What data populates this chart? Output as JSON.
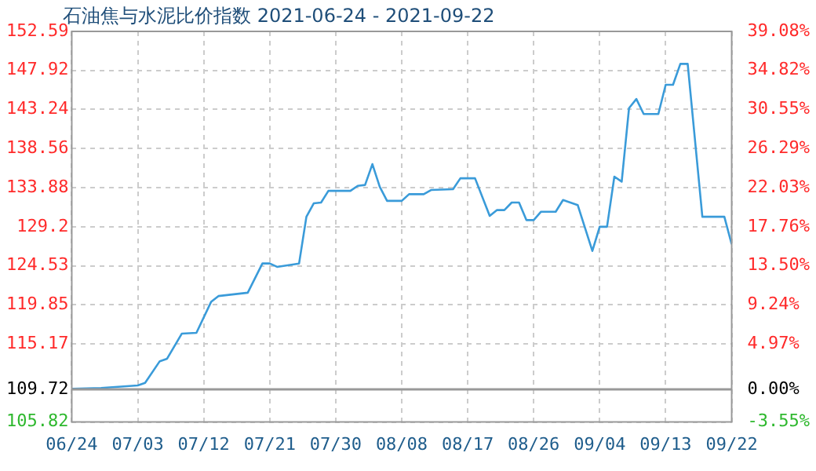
{
  "chart_data": {
    "type": "line",
    "title": "石油焦与水泥比价指数 2021-06-24 - 2021-09-22",
    "x": [
      "--06-24",
      "--06-28",
      "--07-03",
      "--07-04",
      "--07-06",
      "--07-07",
      "--07-09",
      "--07-11",
      "--07-13",
      "--07-14",
      "--07-18",
      "--07-20",
      "--07-21",
      "--07-22",
      "--07-25",
      "--07-26",
      "--07-27",
      "--07-28",
      "--07-29",
      "--08-01",
      "--08-02",
      "--08-03",
      "--08-04",
      "--08-05",
      "--08-06",
      "--08-08",
      "--08-09",
      "--08-11",
      "--08-12",
      "--08-15",
      "--08-16",
      "--08-18",
      "--08-20",
      "--08-21",
      "--08-22",
      "--08-23",
      "--08-24",
      "--08-25",
      "--08-26",
      "--08-27",
      "--08-29",
      "--08-30",
      "--09-01",
      "--09-03",
      "--09-04",
      "--09-05",
      "--09-06",
      "--09-07",
      "--09-08",
      "--09-09",
      "--09-10",
      "--09-12",
      "--09-13",
      "--09-14",
      "--09-15",
      "--09-16",
      "--09-18",
      "--09-21",
      "--09-22"
    ],
    "series": [
      {
        "color": "#3a9bd9",
        "values": [
          109.8,
          109.9,
          110.2,
          110.5,
          113.1,
          113.4,
          116.4,
          116.5,
          120.2,
          120.9,
          121.3,
          124.8,
          124.8,
          124.4,
          124.8,
          130.4,
          132.0,
          132.1,
          133.5,
          133.5,
          134.1,
          134.2,
          136.7,
          134.0,
          132.3,
          132.3,
          133.1,
          133.1,
          133.6,
          133.7,
          135.0,
          135.0,
          130.5,
          131.2,
          131.2,
          132.1,
          132.1,
          130.0,
          130.0,
          131.0,
          131.0,
          132.4,
          131.8,
          126.3,
          129.2,
          129.2,
          135.2,
          134.6,
          143.4,
          144.5,
          142.7,
          142.7,
          146.2,
          146.2,
          148.7,
          148.7,
          130.4,
          130.4,
          127.1
        ]
      }
    ],
    "xlim": [
      "--06-24",
      "--09-22"
    ],
    "xticks": [
      {
        "value": "--06-24",
        "label": "06/24"
      },
      {
        "value": "--07-03",
        "label": "07/03"
      },
      {
        "value": "--07-12",
        "label": "07/12"
      },
      {
        "value": "--07-21",
        "label": "07/21"
      },
      {
        "value": "--07-30",
        "label": "07/30"
      },
      {
        "value": "--08-08",
        "label": "08/08"
      },
      {
        "value": "--08-17",
        "label": "08/17"
      },
      {
        "value": "--08-26",
        "label": "08/26"
      },
      {
        "value": "--09-04",
        "label": "09/04"
      },
      {
        "value": "--09-13",
        "label": "09/13"
      },
      {
        "value": "--09-22",
        "label": "09/22"
      }
    ],
    "ylim": [
      105.82,
      152.59
    ],
    "yticks": [
      105.82,
      109.72,
      115.17,
      119.85,
      124.53,
      129.2,
      133.88,
      138.56,
      143.24,
      147.92,
      152.59
    ],
    "y2lim": [
      -3.55,
      39.08
    ],
    "y2ticks": [
      {
        "value": -3.55,
        "label": "-3.55%"
      },
      {
        "value": 0,
        "label": "0.00%"
      },
      {
        "value": 4.97,
        "label": "4.97%"
      },
      {
        "value": 9.24,
        "label": "9.24%"
      },
      {
        "value": 13.5,
        "label": "13.50%"
      },
      {
        "value": 17.76,
        "label": "17.76%"
      },
      {
        "value": 22.03,
        "label": "22.03%"
      },
      {
        "value": 26.29,
        "label": "26.29%"
      },
      {
        "value": 30.55,
        "label": "30.55%"
      },
      {
        "value": 34.82,
        "label": "34.82%"
      },
      {
        "value": 39.08,
        "label": "39.08%"
      }
    ],
    "ref_lines": [
      {
        "axis": "y",
        "value": 109.72,
        "color": "#999999"
      }
    ],
    "grid": true,
    "legend": false,
    "marker": "none",
    "line_style": "solid"
  }
}
